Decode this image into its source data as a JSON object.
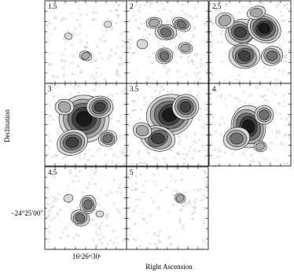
{
  "figure": {
    "panels": [
      {
        "label": "1.5"
      },
      {
        "label": "2"
      },
      {
        "label": "2.5"
      },
      {
        "label": "3"
      },
      {
        "label": "3.5"
      },
      {
        "label": "4"
      },
      {
        "label": "4.5"
      },
      {
        "label": "5"
      }
    ],
    "y_axis_label": "Declination",
    "x_axis_label": "Right Ascension",
    "y_tick_label": "−24°25′00″",
    "x_tick_label": "16ʰ26ᵐ30ˢ"
  }
}
